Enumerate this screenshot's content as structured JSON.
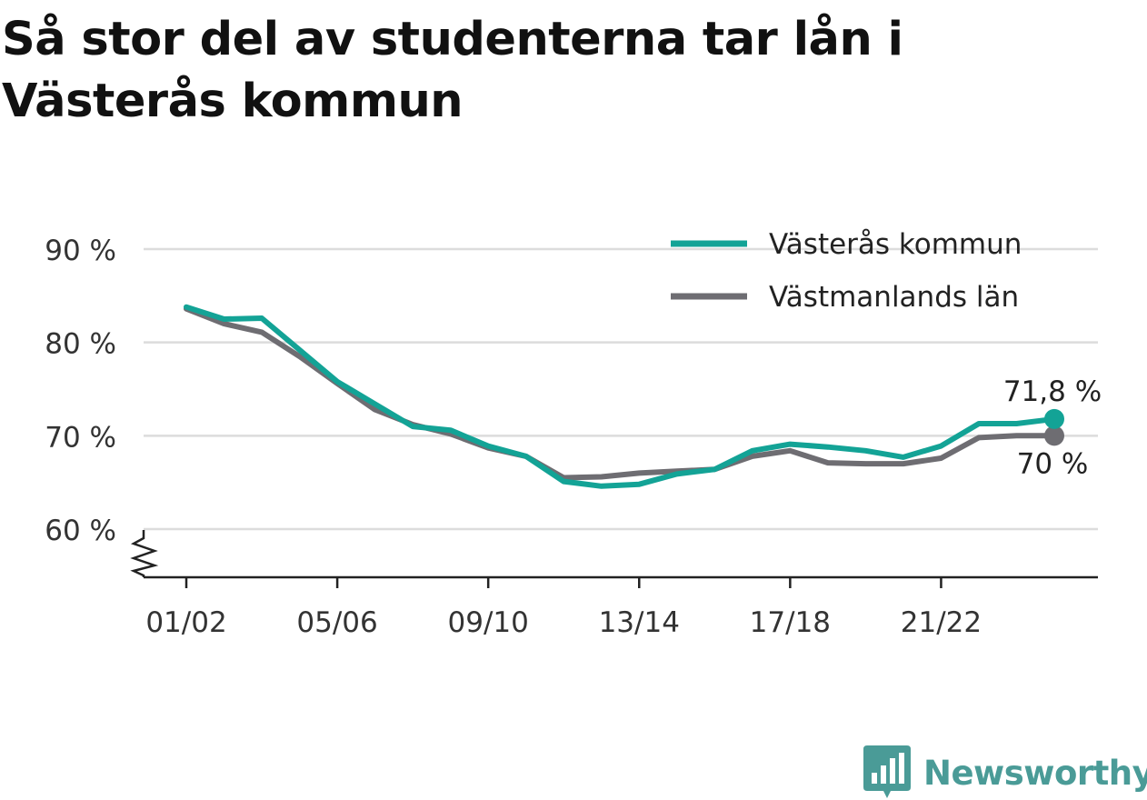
{
  "title": "Så stor del av studenterna tar lån i Västerås kommun",
  "chart_data": {
    "type": "line",
    "x": [
      "01/02",
      "02/03",
      "03/04",
      "04/05",
      "05/06",
      "06/07",
      "07/08",
      "08/09",
      "09/10",
      "10/11",
      "11/12",
      "12/13",
      "13/14",
      "14/15",
      "15/16",
      "16/17",
      "17/18",
      "18/19",
      "19/20",
      "20/21",
      "21/22",
      "22/23",
      "23/24",
      "24/25"
    ],
    "x_tick_labels": [
      "01/02",
      "05/06",
      "09/10",
      "13/14",
      "17/18",
      "21/22"
    ],
    "y_ticks": [
      60,
      70,
      80,
      90
    ],
    "y_tick_labels": [
      "60 %",
      "70 %",
      "80 %",
      "90 %"
    ],
    "ylim": [
      55,
      90
    ],
    "xlabel": "",
    "ylabel": "",
    "grid": true,
    "broken_axis": true,
    "legend_position": "top-right",
    "series": [
      {
        "name": "Västerås kommun",
        "color": "#13a396",
        "values": [
          83.8,
          82.5,
          82.6,
          79.2,
          75.8,
          73.4,
          71.0,
          70.6,
          68.9,
          67.8,
          65.1,
          64.6,
          64.8,
          65.9,
          66.4,
          68.4,
          69.1,
          68.8,
          68.4,
          67.7,
          68.9,
          71.3,
          71.3,
          71.8
        ],
        "end_label": "71,8 %"
      },
      {
        "name": "Västmanlands län",
        "color": "#6e6d72",
        "values": [
          83.6,
          82.0,
          81.1,
          78.5,
          75.6,
          72.8,
          71.2,
          70.2,
          68.7,
          67.8,
          65.5,
          65.6,
          66.0,
          66.2,
          66.4,
          67.8,
          68.4,
          67.1,
          67.0,
          67.0,
          67.6,
          69.8,
          70.0,
          70.0
        ],
        "end_label": "70 %"
      }
    ]
  },
  "brand": {
    "name": "Newsworthy",
    "color": "#4a9b97",
    "icon": "bar-chart-speech-bubble-icon"
  }
}
